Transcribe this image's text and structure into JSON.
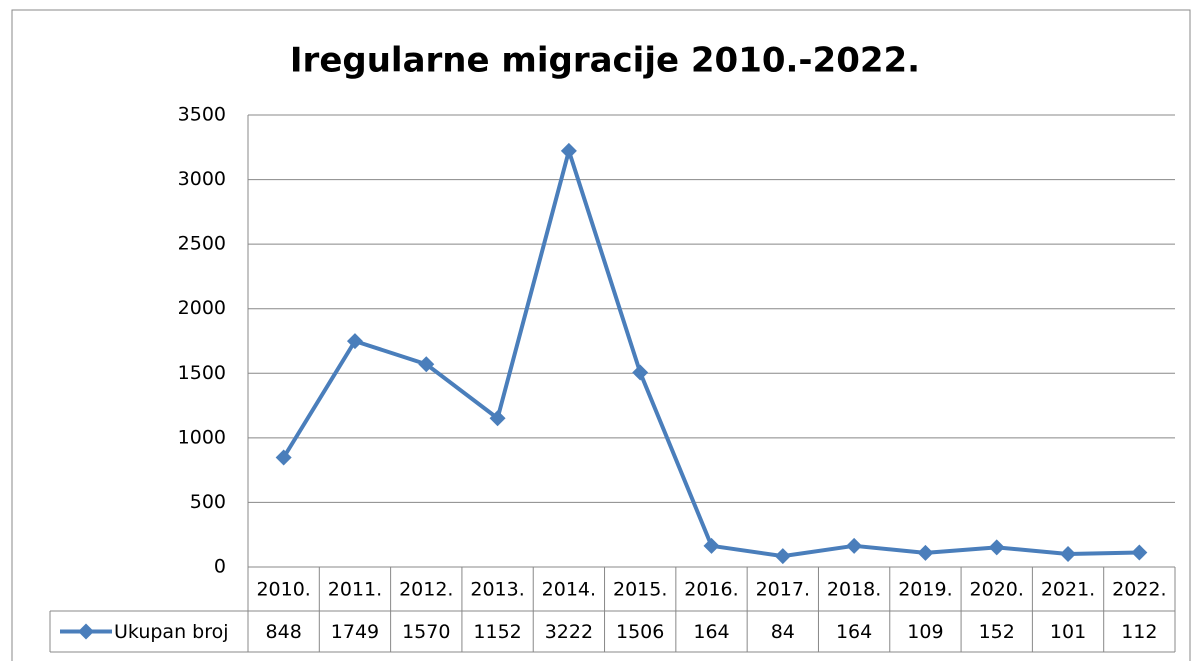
{
  "chart_data": {
    "type": "line",
    "title": "Iregularne migracije 2010.-2022.",
    "categories": [
      "2010.",
      "2011.",
      "2012.",
      "2013.",
      "2014.",
      "2015.",
      "2016.",
      "2017.",
      "2018.",
      "2019.",
      "2020.",
      "2021.",
      "2022."
    ],
    "series": [
      {
        "name": "Ukupan broj",
        "color": "#4a7ebb",
        "values": [
          848,
          1749,
          1570,
          1152,
          3222,
          1506,
          164,
          84,
          164,
          109,
          152,
          101,
          112
        ]
      }
    ],
    "ylim": [
      0,
      3500
    ],
    "yticks": [
      0,
      500,
      1000,
      1500,
      2000,
      2500,
      3000,
      3500
    ],
    "grid": true,
    "data_table": true
  }
}
